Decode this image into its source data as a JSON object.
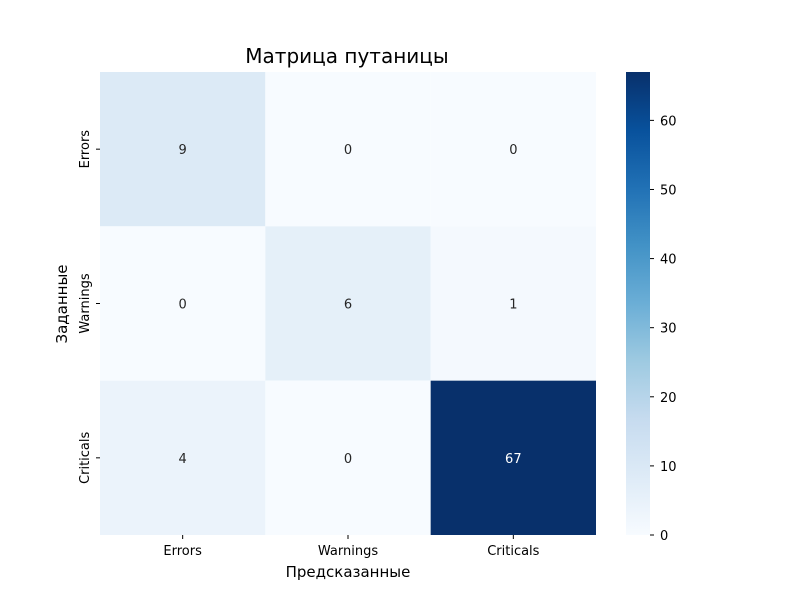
{
  "chart_data": {
    "type": "heatmap",
    "title": "Матрица путаницы",
    "xlabel": "Предсказанные",
    "ylabel": "Заданные",
    "x_categories": [
      "Errors",
      "Warnings",
      "Criticals"
    ],
    "y_categories": [
      "Errors",
      "Warnings",
      "Criticals"
    ],
    "values": [
      [
        9,
        0,
        0
      ],
      [
        0,
        6,
        1
      ],
      [
        4,
        0,
        67
      ]
    ],
    "colorbar": {
      "min": 0,
      "max": 67,
      "ticks": [
        0,
        10,
        20,
        30,
        40,
        50,
        60
      ],
      "colormap": "Blues"
    },
    "annotations": true,
    "grid": false
  }
}
